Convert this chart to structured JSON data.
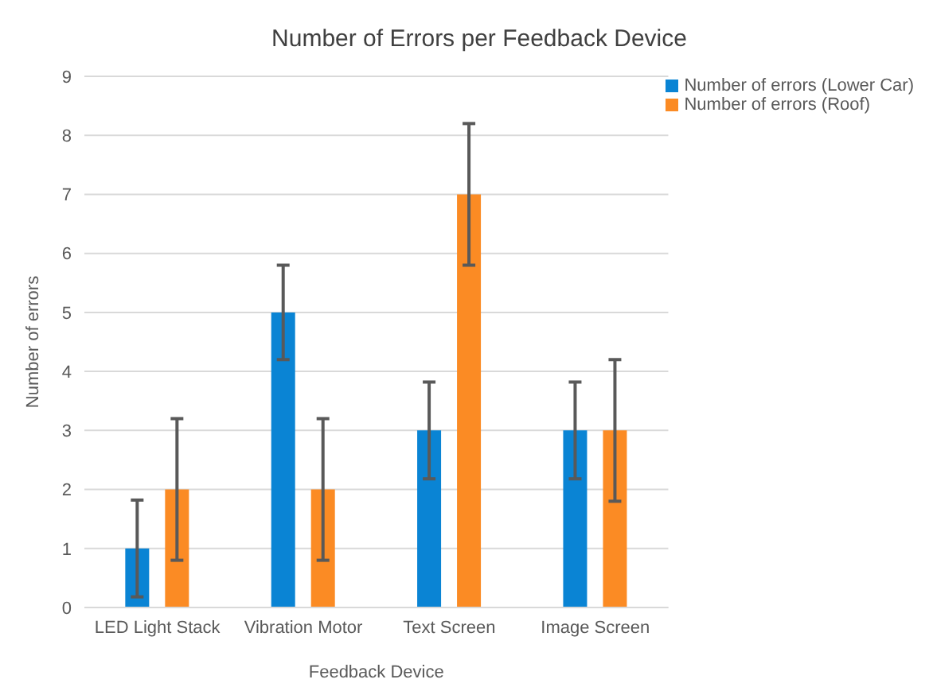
{
  "chart_data": {
    "type": "bar",
    "title": "Number of Errors per Feedback Device",
    "xlabel": "Feedback Device",
    "ylabel": "Number of errors",
    "categories": [
      "LED Light Stack",
      "Vibration Motor",
      "Text Screen",
      "Image Screen"
    ],
    "series": [
      {
        "name": "Number of errors (Lower Car)",
        "color": "#0a84d4",
        "values": [
          1,
          5,
          3,
          3
        ],
        "errors": [
          0.82,
          0.8,
          0.82,
          0.82
        ]
      },
      {
        "name": "Number of errors (Roof)",
        "color": "#fb8b24",
        "values": [
          2,
          2,
          7,
          3
        ],
        "errors": [
          1.2,
          1.2,
          1.2,
          1.2
        ]
      }
    ],
    "ylim": [
      0,
      9
    ],
    "yticks": [
      0,
      1,
      2,
      3,
      4,
      5,
      6,
      7,
      8,
      9
    ],
    "grid": "y",
    "legend": "top right"
  }
}
